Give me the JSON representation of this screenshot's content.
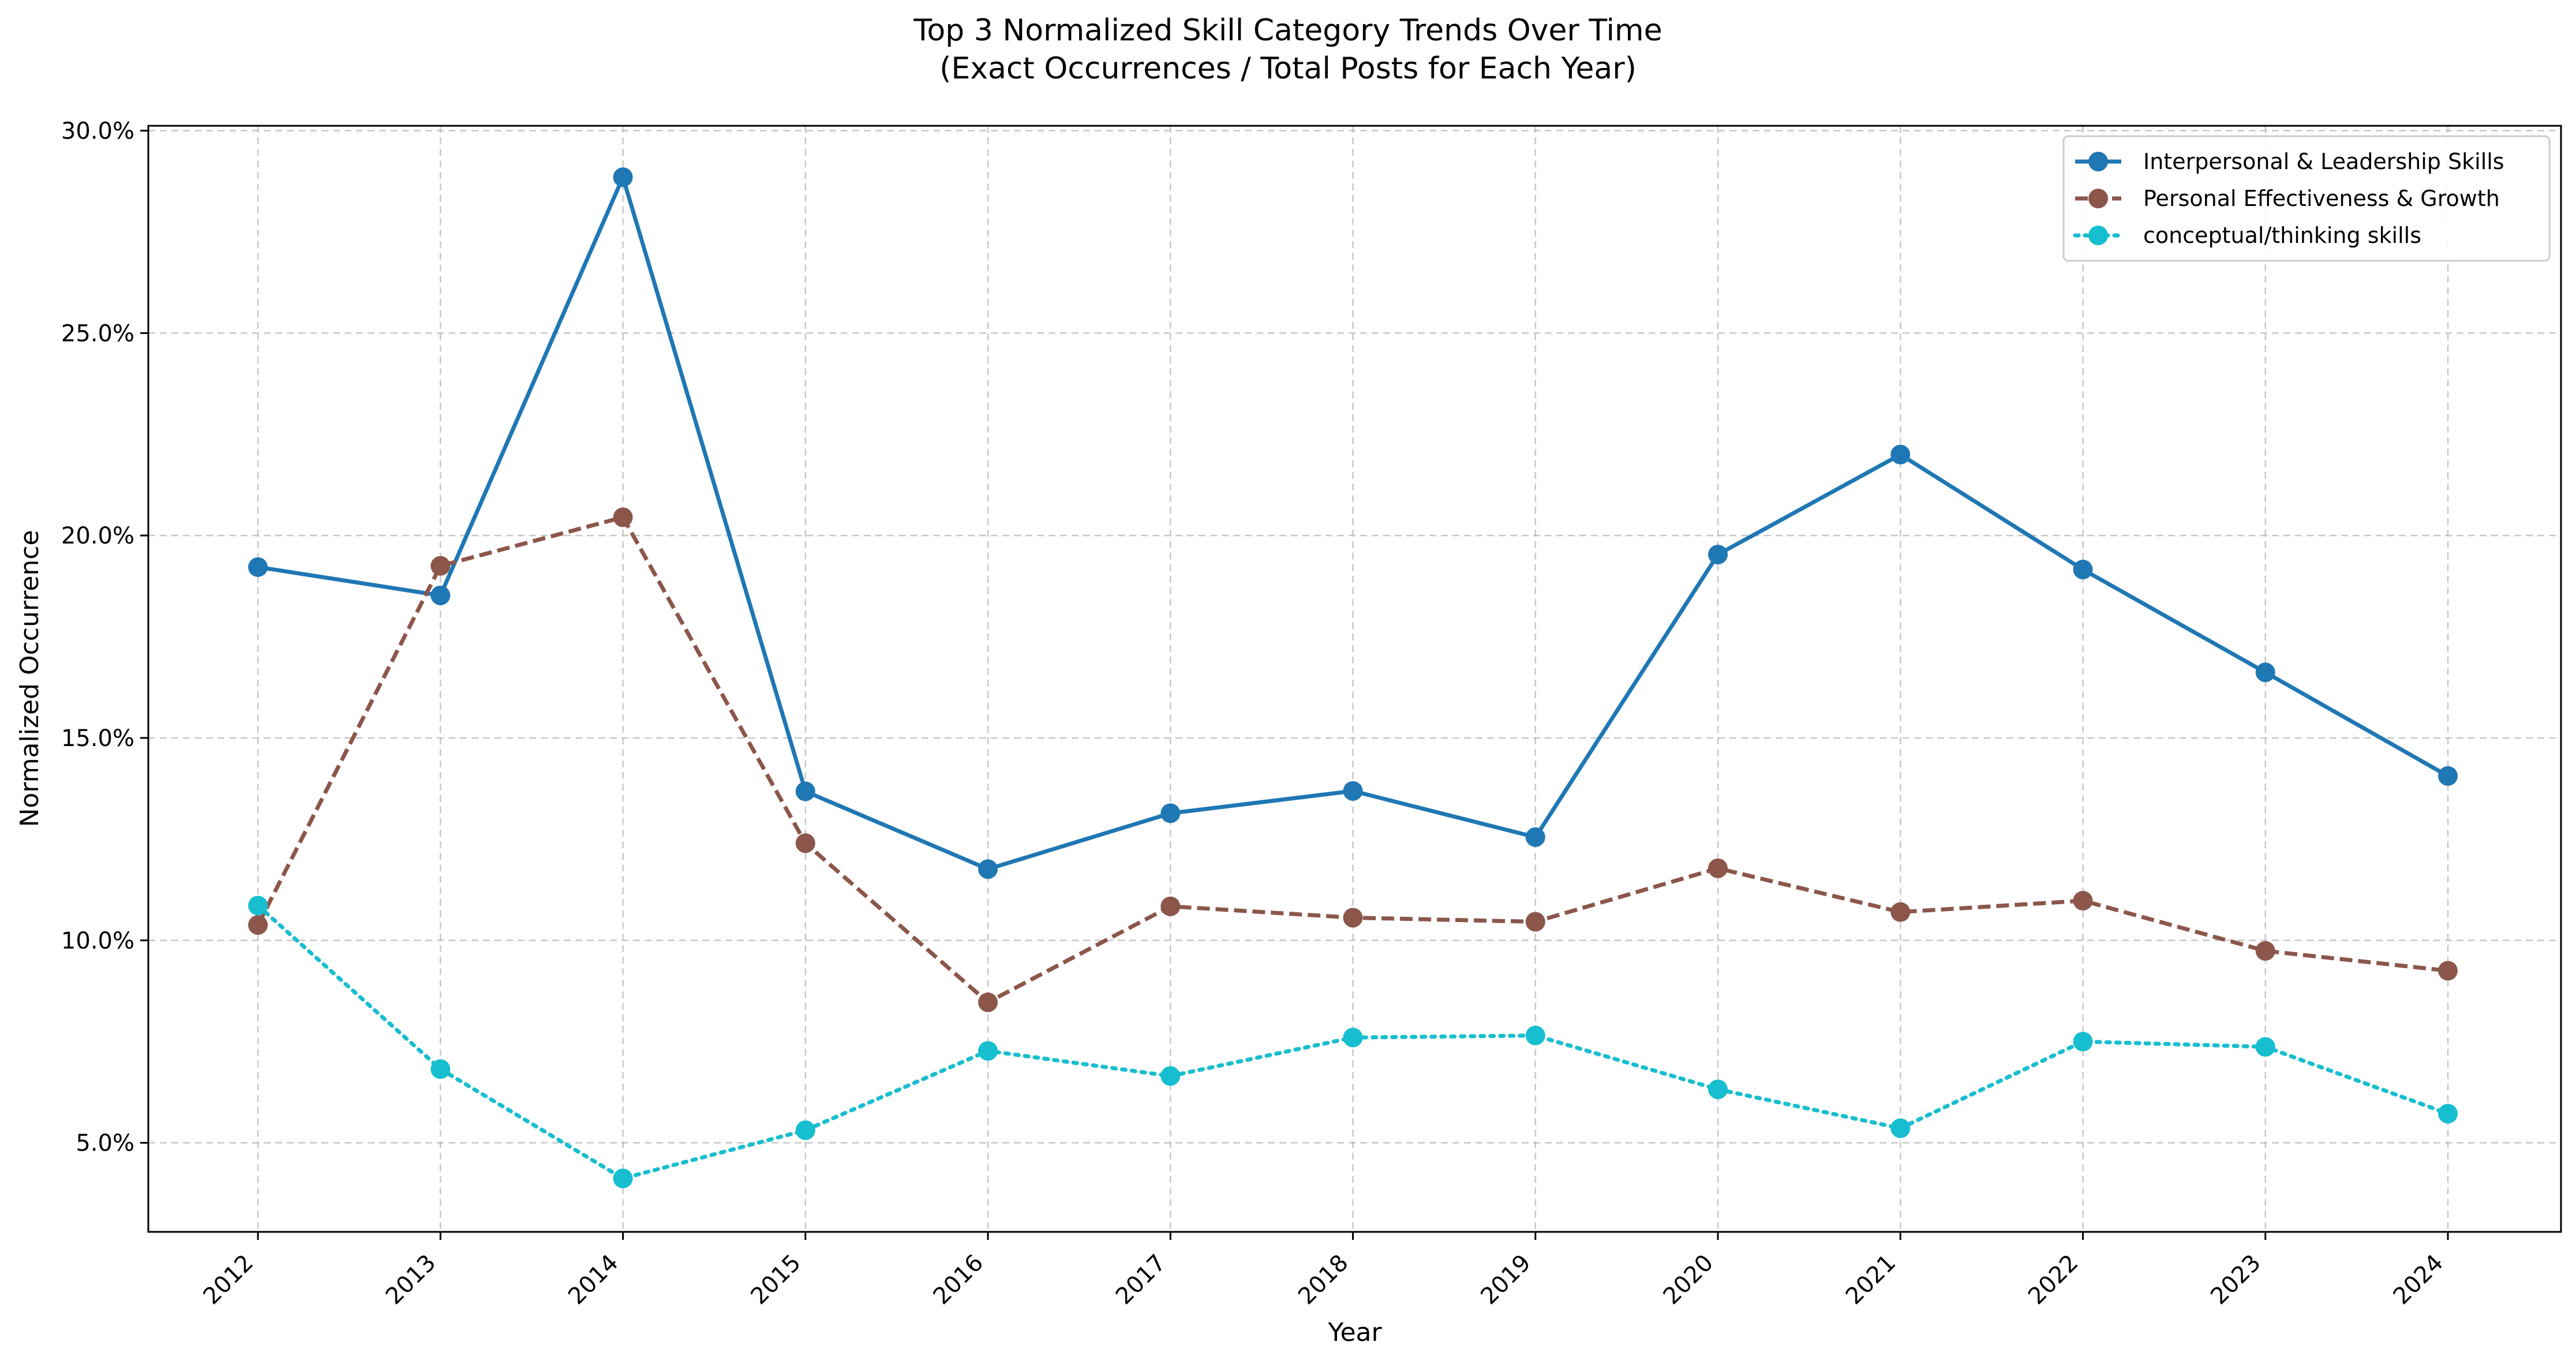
{
  "chart_data": {
    "type": "line",
    "title": "Top 3 Normalized Skill Category Trends Over Time",
    "subtitle": "(Exact Occurrences / Total Posts for Each Year)",
    "xlabel": "Year",
    "ylabel": "Normalized Occurrence",
    "x": [
      "2012",
      "2013",
      "2014",
      "2015",
      "2016",
      "2017",
      "2018",
      "2019",
      "2020",
      "2021",
      "2022",
      "2023",
      "2024"
    ],
    "ylim": [
      0.028,
      0.3012
    ],
    "yticks": [
      0.05,
      0.1,
      0.15,
      0.2,
      0.25,
      0.3
    ],
    "ytick_labels": [
      "5.0%",
      "10.0%",
      "15.0%",
      "20.0%",
      "25.0%",
      "30.0%"
    ],
    "grid": true,
    "legend_position": "top-right",
    "series": [
      {
        "name": "Interpersonal & Leadership Skills",
        "color": "#1f77b4",
        "line_style": "solid",
        "values": [
          0.1922,
          0.1852,
          0.2885,
          0.1368,
          0.1176,
          0.1314,
          0.1369,
          0.1255,
          0.1953,
          0.22,
          0.1916,
          0.1662,
          0.1406
        ]
      },
      {
        "name": "Personal Effectiveness & Growth",
        "color": "#8c564b",
        "line_style": "dashed",
        "values": [
          0.1038,
          0.1925,
          0.2045,
          0.124,
          0.0847,
          0.1084,
          0.1056,
          0.1046,
          0.1178,
          0.107,
          0.1098,
          0.0974,
          0.0925
        ]
      },
      {
        "name": "conceptual/thinking skills",
        "color": "#17becf",
        "line_style": "dotted",
        "values": [
          0.1086,
          0.0682,
          0.0412,
          0.0531,
          0.0727,
          0.0665,
          0.076,
          0.0765,
          0.0632,
          0.0536,
          0.075,
          0.0737,
          0.0572
        ]
      }
    ]
  }
}
